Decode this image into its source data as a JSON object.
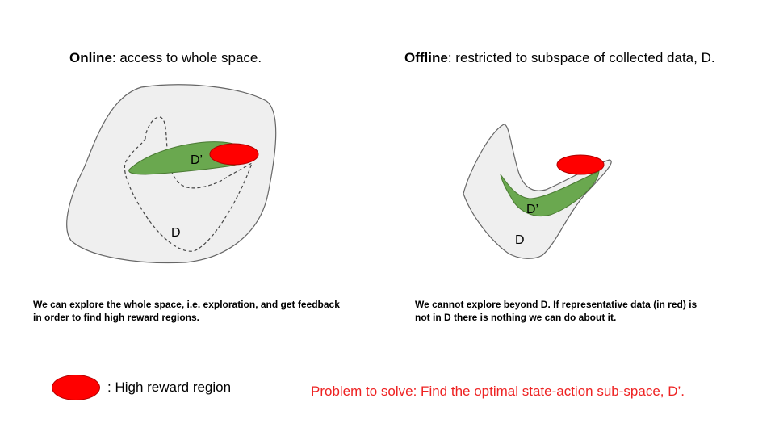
{
  "online": {
    "title_bold": "Online",
    "title_rest": ": access to whole space.",
    "label_d": "D",
    "label_dprime": "D’",
    "caption": "We can explore the whole space, i.e. exploration, and get feedback in order to find high reward regions."
  },
  "offline": {
    "title_bold": "Offline",
    "title_rest": ": restricted to subspace of collected data, D.",
    "label_d": "D",
    "label_dprime": "D’",
    "caption": "We cannot explore beyond D. If representative data (in red) is not in D there is nothing we can do about it."
  },
  "legend": {
    "label": ": High reward region"
  },
  "problem": "Problem to solve: Find the optimal state-action sub-space, D’.",
  "colors": {
    "space_fill": "#efefef",
    "subspace_green": "#6aa84f",
    "high_reward_red": "#ff0000",
    "problem_text": "#ee2222"
  }
}
